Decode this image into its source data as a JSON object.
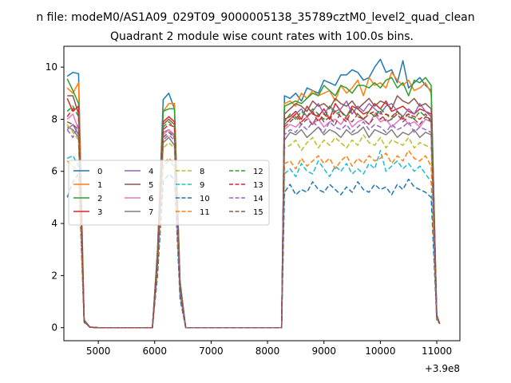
{
  "chart_data": {
    "type": "line",
    "suptitle": "n file: modeM0/AS1A09_029T09_9000005138_35789cztM0_level2_quad_clean",
    "title": "Quadrant 2 module wise count rates with 100.0s bins.",
    "xlabel": "",
    "ylabel": "",
    "x_offset_label": "+3.9e8",
    "xlim": [
      4390,
      11410
    ],
    "ylim": [
      -0.5,
      10.8
    ],
    "x_ticks": [
      5000,
      6000,
      7000,
      8000,
      9000,
      10000,
      11000
    ],
    "y_ticks": [
      0,
      2,
      4,
      6,
      8,
      10
    ],
    "legend_position": "center-left",
    "grid": false,
    "x": [
      4450,
      4550,
      4650,
      4750,
      4850,
      5000,
      5500,
      5960,
      6050,
      6150,
      6250,
      6350,
      6450,
      6550,
      7000,
      7500,
      8000,
      8250,
      8300,
      8400,
      8500,
      8600,
      8700,
      8800,
      8900,
      9000,
      9100,
      9200,
      9300,
      9400,
      9500,
      9600,
      9700,
      9800,
      9900,
      10000,
      10100,
      10200,
      10300,
      10400,
      10500,
      10600,
      10700,
      10800,
      10900,
      11000,
      11050
    ],
    "series": [
      {
        "name": "0",
        "color": "#1f77b4",
        "dash": "",
        "values": [
          9.65,
          9.8,
          9.75,
          0.3,
          0.02,
          0.0,
          0.0,
          0.0,
          3.0,
          8.75,
          9.0,
          8.4,
          1.8,
          0.0,
          0.0,
          0.0,
          0.0,
          0.0,
          8.9,
          8.8,
          9.0,
          8.7,
          9.2,
          9.1,
          9.0,
          9.5,
          9.4,
          9.3,
          9.7,
          9.7,
          9.9,
          9.8,
          9.5,
          9.6,
          10.0,
          10.3,
          9.8,
          9.9,
          9.4,
          10.25,
          9.2,
          9.4,
          9.6,
          9.3,
          9.1,
          0.5,
          0.15
        ]
      },
      {
        "name": "1",
        "color": "#ff7f0e",
        "dash": "",
        "values": [
          9.2,
          9.0,
          9.4,
          0.3,
          0.02,
          0.0,
          0.0,
          0.0,
          2.9,
          8.3,
          8.6,
          8.6,
          1.7,
          0.0,
          0.0,
          0.0,
          0.0,
          0.0,
          8.6,
          8.7,
          8.5,
          9.0,
          8.8,
          9.1,
          8.9,
          9.0,
          9.1,
          8.7,
          9.3,
          9.0,
          9.2,
          9.5,
          8.9,
          9.6,
          9.3,
          9.4,
          9.2,
          9.8,
          9.5,
          9.3,
          9.5,
          9.1,
          9.2,
          9.4,
          9.0,
          0.5,
          0.15
        ]
      },
      {
        "name": "2",
        "color": "#2ca02c",
        "dash": "",
        "values": [
          9.55,
          9.1,
          8.6,
          0.3,
          0.02,
          0.0,
          0.0,
          0.0,
          2.9,
          8.3,
          8.4,
          8.4,
          1.7,
          0.0,
          0.0,
          0.0,
          0.0,
          0.0,
          8.5,
          8.6,
          8.7,
          8.6,
          8.8,
          9.0,
          8.9,
          9.3,
          9.1,
          8.9,
          9.3,
          9.2,
          9.0,
          9.3,
          9.3,
          9.2,
          9.4,
          9.2,
          9.5,
          9.6,
          9.2,
          9.4,
          8.9,
          9.5,
          9.4,
          9.6,
          9.3,
          0.5,
          0.15
        ]
      },
      {
        "name": "3",
        "color": "#d62728",
        "dash": "",
        "values": [
          8.8,
          8.3,
          8.5,
          0.25,
          0.02,
          0.0,
          0.0,
          0.0,
          2.7,
          7.9,
          8.1,
          7.9,
          1.6,
          0.0,
          0.0,
          0.0,
          0.0,
          0.0,
          8.0,
          8.1,
          8.3,
          8.0,
          8.5,
          8.2,
          8.1,
          8.4,
          8.0,
          8.6,
          8.3,
          8.1,
          8.5,
          8.4,
          8.2,
          8.3,
          8.6,
          8.4,
          8.7,
          8.3,
          8.4,
          8.5,
          8.3,
          8.2,
          8.4,
          8.3,
          8.2,
          0.45,
          0.15
        ]
      },
      {
        "name": "4",
        "color": "#9467bd",
        "dash": "",
        "values": [
          7.6,
          7.8,
          7.4,
          0.25,
          0.02,
          0.0,
          0.0,
          0.0,
          2.6,
          7.5,
          7.6,
          7.4,
          1.5,
          0.0,
          0.0,
          0.0,
          0.0,
          0.0,
          7.8,
          8.0,
          8.2,
          8.4,
          8.1,
          8.3,
          8.6,
          8.2,
          8.5,
          8.3,
          8.4,
          8.7,
          8.2,
          8.5,
          8.3,
          8.6,
          8.4,
          8.2,
          8.5,
          8.6,
          8.3,
          8.1,
          8.4,
          8.2,
          8.6,
          8.3,
          8.1,
          0.45,
          0.15
        ]
      },
      {
        "name": "5",
        "color": "#8c564b",
        "dash": "",
        "values": [
          8.9,
          8.9,
          8.2,
          0.25,
          0.02,
          0.0,
          0.0,
          0.0,
          2.7,
          7.8,
          8.0,
          7.8,
          1.6,
          0.0,
          0.0,
          0.0,
          0.0,
          0.0,
          8.2,
          8.4,
          8.6,
          8.5,
          8.3,
          8.7,
          8.5,
          8.6,
          8.4,
          8.8,
          8.6,
          8.5,
          8.7,
          8.4,
          8.6,
          8.8,
          8.5,
          8.7,
          8.6,
          8.4,
          8.9,
          8.7,
          8.6,
          8.8,
          8.5,
          8.6,
          8.4,
          0.45,
          0.15
        ]
      },
      {
        "name": "6",
        "color": "#e377c2",
        "dash": "",
        "values": [
          8.0,
          8.2,
          7.6,
          0.25,
          0.02,
          0.0,
          0.0,
          0.0,
          2.6,
          7.4,
          7.6,
          7.3,
          1.5,
          0.0,
          0.0,
          0.0,
          0.0,
          0.0,
          7.6,
          7.8,
          7.7,
          7.9,
          8.1,
          7.8,
          8.0,
          7.7,
          7.9,
          8.0,
          7.8,
          8.1,
          7.7,
          7.9,
          8.0,
          7.8,
          8.2,
          7.9,
          8.0,
          7.7,
          7.9,
          8.1,
          7.8,
          7.9,
          7.7,
          8.0,
          7.9,
          0.4,
          0.15
        ]
      },
      {
        "name": "7",
        "color": "#7f7f7f",
        "dash": "",
        "values": [
          7.7,
          7.6,
          7.3,
          0.25,
          0.02,
          0.0,
          0.0,
          0.0,
          2.5,
          7.1,
          7.3,
          7.0,
          1.4,
          0.0,
          0.0,
          0.0,
          0.0,
          0.0,
          7.2,
          7.5,
          7.4,
          7.6,
          7.3,
          7.5,
          7.7,
          7.4,
          7.6,
          7.5,
          7.3,
          7.6,
          7.4,
          7.5,
          7.7,
          7.3,
          7.6,
          7.5,
          7.4,
          7.6,
          7.3,
          7.5,
          7.4,
          7.6,
          7.3,
          7.5,
          7.4,
          0.4,
          0.15
        ]
      },
      {
        "name": "8",
        "color": "#bcbd22",
        "dash": "6,3",
        "values": [
          7.8,
          7.5,
          7.2,
          0.25,
          0.02,
          0.0,
          0.0,
          0.0,
          2.5,
          6.9,
          7.1,
          6.9,
          1.4,
          0.0,
          0.0,
          0.0,
          0.0,
          0.0,
          6.9,
          7.0,
          7.2,
          6.8,
          7.1,
          7.3,
          6.9,
          7.2,
          7.0,
          7.3,
          7.1,
          6.9,
          7.2,
          7.0,
          7.4,
          7.1,
          7.0,
          7.3,
          6.9,
          7.2,
          7.1,
          7.0,
          7.3,
          6.9,
          7.1,
          7.0,
          6.9,
          0.4,
          0.15
        ]
      },
      {
        "name": "9",
        "color": "#17becf",
        "dash": "6,3",
        "values": [
          6.5,
          6.6,
          6.2,
          0.25,
          0.02,
          0.0,
          0.0,
          0.0,
          2.3,
          6.2,
          6.4,
          6.2,
          1.3,
          0.0,
          0.0,
          0.0,
          0.0,
          0.0,
          5.9,
          6.1,
          5.8,
          6.3,
          6.0,
          5.9,
          6.4,
          6.1,
          5.8,
          6.2,
          6.0,
          6.3,
          5.9,
          6.1,
          5.9,
          6.3,
          6.1,
          6.8,
          6.0,
          6.2,
          6.4,
          6.1,
          6.3,
          6.0,
          6.2,
          5.9,
          5.6,
          0.35,
          0.15
        ]
      },
      {
        "name": "10",
        "color": "#1f77b4",
        "dash": "6,3",
        "values": [
          5.0,
          5.6,
          5.9,
          0.2,
          0.02,
          0.0,
          0.0,
          0.0,
          2.0,
          5.6,
          5.9,
          5.7,
          1.1,
          0.0,
          0.0,
          0.0,
          0.0,
          0.0,
          5.2,
          5.5,
          5.1,
          5.3,
          5.2,
          5.6,
          5.3,
          5.2,
          5.5,
          5.3,
          5.1,
          5.4,
          5.2,
          5.6,
          5.3,
          5.2,
          5.5,
          5.3,
          5.4,
          5.1,
          5.5,
          5.3,
          5.7,
          5.4,
          5.3,
          5.2,
          5.0,
          0.3,
          0.15
        ]
      },
      {
        "name": "11",
        "color": "#ff7f0e",
        "dash": "6,3",
        "values": [
          6.4,
          6.2,
          6.0,
          0.25,
          0.02,
          0.0,
          0.0,
          0.0,
          2.3,
          6.3,
          6.5,
          6.3,
          1.3,
          0.0,
          0.0,
          0.0,
          0.0,
          0.0,
          6.3,
          6.4,
          6.1,
          6.5,
          6.2,
          6.4,
          6.6,
          6.3,
          6.5,
          6.1,
          6.4,
          6.6,
          6.2,
          6.5,
          6.3,
          6.6,
          6.4,
          6.5,
          6.7,
          6.3,
          6.6,
          6.4,
          6.8,
          6.5,
          6.4,
          6.6,
          6.2,
          0.35,
          0.15
        ]
      },
      {
        "name": "12",
        "color": "#2ca02c",
        "dash": "6,3",
        "values": [
          8.3,
          8.5,
          8.1,
          0.25,
          0.02,
          0.0,
          0.0,
          0.0,
          2.6,
          7.7,
          7.9,
          7.7,
          1.5,
          0.0,
          0.0,
          0.0,
          0.0,
          0.0,
          7.9,
          8.2,
          8.0,
          8.3,
          8.1,
          8.4,
          8.2,
          8.0,
          8.5,
          8.2,
          8.3,
          8.1,
          8.4,
          8.2,
          8.0,
          8.3,
          8.1,
          8.4,
          8.2,
          8.0,
          8.3,
          8.1,
          8.2,
          8.0,
          8.3,
          8.1,
          8.0,
          0.45,
          0.15
        ]
      },
      {
        "name": "13",
        "color": "#d62728",
        "dash": "6,3",
        "values": [
          8.1,
          8.4,
          8.3,
          0.25,
          0.02,
          0.0,
          0.0,
          0.0,
          2.6,
          7.6,
          7.8,
          7.7,
          1.5,
          0.0,
          0.0,
          0.0,
          0.0,
          0.0,
          7.8,
          8.0,
          8.2,
          7.9,
          8.1,
          8.3,
          7.9,
          8.2,
          8.0,
          8.3,
          8.1,
          7.9,
          8.4,
          8.1,
          8.0,
          8.2,
          8.3,
          8.0,
          8.2,
          8.1,
          8.3,
          8.0,
          8.2,
          8.1,
          8.0,
          8.2,
          7.9,
          0.45,
          0.15
        ]
      },
      {
        "name": "14",
        "color": "#9467bd",
        "dash": "6,3",
        "values": [
          7.6,
          7.3,
          7.8,
          0.25,
          0.02,
          0.0,
          0.0,
          0.0,
          2.5,
          7.2,
          7.4,
          7.2,
          1.4,
          0.0,
          0.0,
          0.0,
          0.0,
          0.0,
          7.4,
          7.6,
          7.5,
          7.8,
          7.6,
          7.9,
          7.7,
          7.5,
          7.9,
          7.7,
          7.6,
          7.8,
          7.5,
          7.7,
          7.9,
          7.6,
          7.8,
          7.7,
          7.5,
          7.8,
          7.6,
          7.7,
          7.9,
          7.5,
          7.7,
          7.6,
          7.5,
          0.4,
          0.15
        ]
      },
      {
        "name": "15",
        "color": "#8c564b",
        "dash": "6,3",
        "values": [
          7.9,
          7.8,
          7.6,
          0.25,
          0.02,
          0.0,
          0.0,
          0.0,
          2.5,
          7.3,
          7.5,
          7.3,
          1.4,
          0.0,
          0.0,
          0.0,
          0.0,
          0.0,
          7.7,
          7.9,
          8.1,
          7.8,
          8.0,
          7.8,
          8.2,
          7.9,
          8.1,
          7.8,
          8.3,
          8.0,
          7.9,
          8.2,
          8.0,
          7.8,
          8.1,
          8.3,
          7.9,
          8.0,
          8.2,
          7.9,
          8.1,
          8.0,
          7.8,
          8.1,
          7.9,
          0.45,
          0.15
        ]
      }
    ]
  }
}
